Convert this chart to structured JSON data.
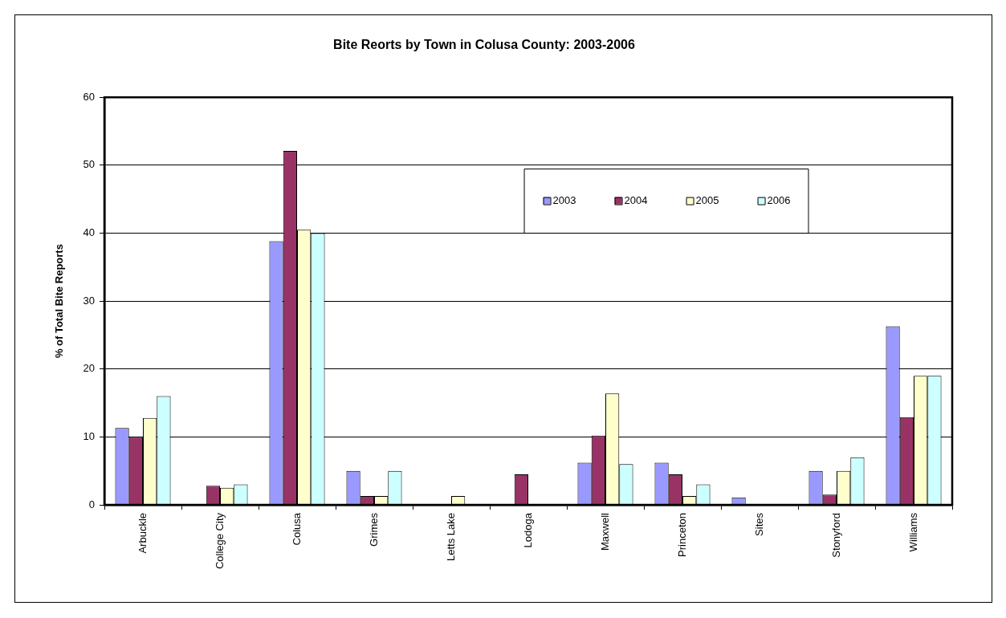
{
  "chart_data": {
    "type": "bar",
    "title": "Bite Reorts by Town in Colusa County: 2003-2006",
    "ylabel": "% of Total Bite Reports",
    "categories": [
      "Arbuckle",
      "College City",
      "Colusa",
      "Grimes",
      "Letts Lake",
      "Lodoga",
      "Maxwell",
      "Princeton",
      "Sites",
      "Stonyford",
      "Williams"
    ],
    "series": [
      {
        "name": "2003",
        "color": "#9999ff",
        "values": [
          11.3,
          0,
          38.8,
          5.0,
          0,
          0,
          6.2,
          6.2,
          1.1,
          5.0,
          26.3
        ]
      },
      {
        "name": "2004",
        "color": "#993366",
        "values": [
          10.0,
          2.8,
          52.1,
          1.3,
          0,
          4.5,
          10.2,
          4.5,
          0,
          1.5,
          12.9
        ]
      },
      {
        "name": "2005",
        "color": "#ffffcc",
        "values": [
          12.8,
          2.5,
          40.5,
          1.3,
          1.3,
          0,
          16.4,
          1.3,
          0,
          5.0,
          19.0
        ]
      },
      {
        "name": "2006",
        "color": "#ccffff",
        "values": [
          16.0,
          3.0,
          40.0,
          5.0,
          0,
          0,
          6.0,
          3.0,
          0,
          7.0,
          19.0
        ]
      }
    ],
    "ylim": [
      0,
      60
    ],
    "yticks": [
      0,
      10,
      20,
      30,
      40,
      50,
      60
    ],
    "grid": "y",
    "legend": "top right"
  }
}
